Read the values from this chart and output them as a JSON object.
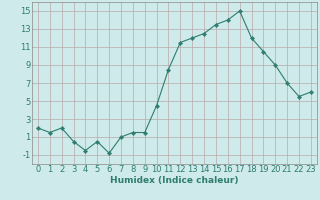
{
  "x": [
    0,
    1,
    2,
    3,
    4,
    5,
    6,
    7,
    8,
    9,
    10,
    11,
    12,
    13,
    14,
    15,
    16,
    17,
    18,
    19,
    20,
    21,
    22,
    23
  ],
  "y": [
    2.0,
    1.5,
    2.0,
    0.5,
    -0.5,
    0.5,
    -0.8,
    1.0,
    1.5,
    1.5,
    4.5,
    8.5,
    11.5,
    12.0,
    12.5,
    13.5,
    14.0,
    15.0,
    12.0,
    10.5,
    9.0,
    7.0,
    5.5,
    6.0
  ],
  "line_color": "#2e7d6e",
  "marker": "D",
  "marker_size": 2.2,
  "bg_color": "#ceeaea",
  "grid_color_major": "#b8a8a8",
  "grid_color_minor": "#d4c4c4",
  "xlabel": "Humidex (Indice chaleur)",
  "xlim": [
    -0.5,
    23.5
  ],
  "ylim": [
    -2,
    16
  ],
  "yticks": [
    -1,
    1,
    3,
    5,
    7,
    9,
    11,
    13,
    15
  ],
  "xticks": [
    0,
    1,
    2,
    3,
    4,
    5,
    6,
    7,
    8,
    9,
    10,
    11,
    12,
    13,
    14,
    15,
    16,
    17,
    18,
    19,
    20,
    21,
    22,
    23
  ],
  "xlabel_fontsize": 6.5,
  "tick_fontsize": 6.0
}
